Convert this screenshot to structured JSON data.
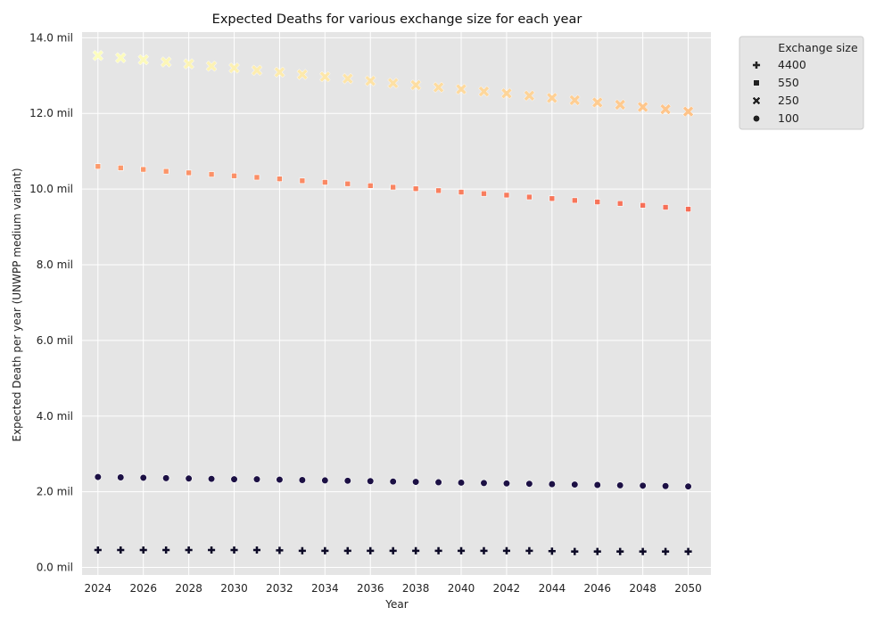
{
  "chart_data": {
    "type": "scatter",
    "title": "Expected Deaths for various exchange size for each year",
    "xlabel": "Year",
    "ylabel": "Expected Death per year (UNWPP medium variant)",
    "xlim": [
      2023.3,
      2051
    ],
    "ylim": [
      -0.2,
      14.15
    ],
    "x_ticks": [
      2024,
      2026,
      2028,
      2030,
      2032,
      2034,
      2036,
      2038,
      2040,
      2042,
      2044,
      2046,
      2048,
      2050
    ],
    "x_tick_labels": [
      "2024",
      "2026",
      "2028",
      "2030",
      "2032",
      "2034",
      "2036",
      "2038",
      "2040",
      "2042",
      "2044",
      "2046",
      "2048",
      "2050"
    ],
    "y_ticks": [
      0,
      2,
      4,
      6,
      8,
      10,
      12,
      14
    ],
    "y_tick_labels": [
      "0.0 mil",
      "2.0 mil",
      "4.0 mil",
      "6.0 mil",
      "8.0 mil",
      "10.0 mil",
      "12.0 mil",
      "14.0 mil"
    ],
    "grid": true,
    "legend": {
      "title": "Exchange size",
      "placement": "outside-top-right",
      "entries": [
        "4400",
        "550",
        "250",
        "100"
      ],
      "markers": [
        "plus",
        "square",
        "x",
        "circle"
      ]
    },
    "x": [
      2024,
      2025,
      2026,
      2027,
      2028,
      2029,
      2030,
      2031,
      2032,
      2033,
      2034,
      2035,
      2036,
      2037,
      2038,
      2039,
      2040,
      2041,
      2042,
      2043,
      2044,
      2045,
      2046,
      2047,
      2048,
      2049,
      2050
    ],
    "series": [
      {
        "name": "4400",
        "marker": "plus",
        "values": [
          0.46,
          0.46,
          0.46,
          0.46,
          0.46,
          0.46,
          0.46,
          0.46,
          0.45,
          0.44,
          0.44,
          0.44,
          0.44,
          0.44,
          0.44,
          0.44,
          0.44,
          0.44,
          0.44,
          0.44,
          0.43,
          0.42,
          0.42,
          0.42,
          0.42,
          0.42,
          0.42
        ],
        "colors": [
          "#0d0a27"
        ]
      },
      {
        "name": "550",
        "marker": "square",
        "values": [
          10.6,
          10.56,
          10.52,
          10.47,
          10.43,
          10.39,
          10.35,
          10.31,
          10.27,
          10.22,
          10.18,
          10.14,
          10.09,
          10.05,
          10.01,
          9.96,
          9.92,
          9.88,
          9.84,
          9.79,
          9.75,
          9.7,
          9.66,
          9.62,
          9.57,
          9.52,
          9.47
        ],
        "colors": [
          "#fc9a6c",
          "#f66d56"
        ]
      },
      {
        "name": "250",
        "marker": "x",
        "values": [
          13.53,
          13.47,
          13.42,
          13.36,
          13.31,
          13.25,
          13.2,
          13.14,
          13.09,
          13.03,
          12.97,
          12.92,
          12.86,
          12.8,
          12.75,
          12.69,
          12.64,
          12.58,
          12.53,
          12.47,
          12.41,
          12.35,
          12.29,
          12.23,
          12.17,
          12.11,
          12.05
        ],
        "colors": [
          "#fcfdbf",
          "#fec389"
        ]
      },
      {
        "name": "100",
        "marker": "circle",
        "values": [
          2.39,
          2.38,
          2.37,
          2.36,
          2.35,
          2.34,
          2.33,
          2.33,
          2.32,
          2.31,
          2.3,
          2.29,
          2.28,
          2.27,
          2.26,
          2.25,
          2.24,
          2.23,
          2.22,
          2.21,
          2.2,
          2.19,
          2.18,
          2.17,
          2.16,
          2.15,
          2.14
        ],
        "colors": [
          "#1c1044"
        ]
      }
    ]
  }
}
